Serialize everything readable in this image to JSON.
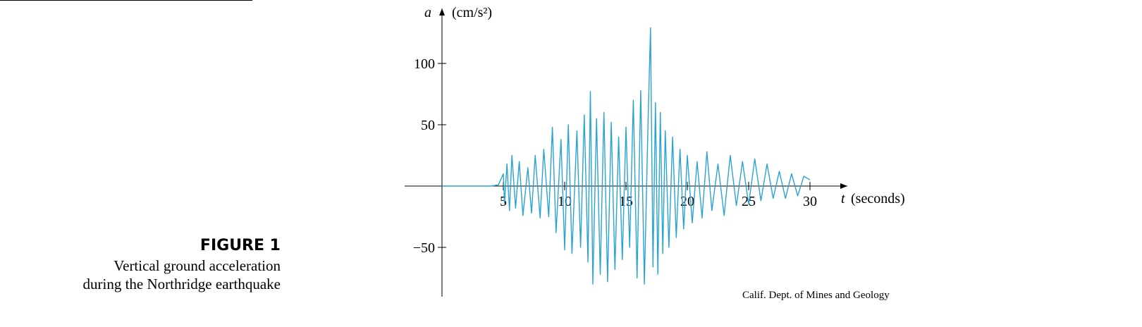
{
  "figure": {
    "label": "FIGURE 1",
    "caption_line1": "Vertical ground acceleration",
    "caption_line2": "during the Northridge earthquake"
  },
  "chart_data": {
    "type": "line",
    "title": "",
    "ylabel_var": "a",
    "ylabel_unit": "(cm/s²)",
    "xlabel_var": "t",
    "xlabel_unit": "(seconds)",
    "xlim": [
      0,
      30
    ],
    "ylim": [
      -88,
      133
    ],
    "x_ticks": [
      5,
      10,
      15,
      20,
      25,
      30
    ],
    "y_ticks": [
      100,
      50,
      -50
    ],
    "y_tick_labels": [
      "100",
      "50",
      "−50"
    ],
    "source": "Calif. Dept. of Mines and Geology",
    "color": "#2aa3d2",
    "series": [
      {
        "x": [
          0,
          1,
          2,
          3,
          4,
          4.6,
          5.0,
          5.1,
          5.3,
          5.5,
          5.7,
          6.0,
          6.3,
          6.6,
          7.0,
          7.3,
          7.6,
          8.0,
          8.3,
          8.7,
          9.0,
          9.3,
          9.7,
          10.0,
          10.3,
          10.6,
          11.0,
          11.3,
          11.6,
          11.9,
          12.1,
          12.3,
          12.6,
          12.9,
          13.2,
          13.5,
          13.8,
          14.1,
          14.4,
          14.7,
          15.0,
          15.3,
          15.6,
          15.9,
          16.2,
          16.5,
          16.8,
          17.0,
          17.2,
          17.4,
          17.6,
          17.8,
          18.0,
          18.2,
          18.5,
          18.8,
          19.1,
          19.4,
          19.7,
          20.0,
          20.4,
          20.8,
          21.2,
          21.6,
          22.0,
          22.5,
          23.0,
          23.5,
          24.0,
          24.5,
          25.0,
          25.5,
          26.0,
          26.5,
          27.0,
          27.5,
          28.0,
          28.5,
          29.0,
          29.5,
          30.0
        ],
        "y": [
          0,
          0,
          0,
          0,
          0,
          1,
          10,
          -14,
          18,
          -20,
          25,
          -18,
          20,
          -24,
          15,
          -22,
          25,
          -26,
          30,
          -25,
          48,
          -38,
          38,
          -52,
          50,
          -55,
          45,
          -50,
          58,
          -62,
          77,
          -80,
          55,
          -72,
          60,
          -78,
          52,
          -68,
          40,
          -60,
          48,
          -50,
          70,
          -75,
          78,
          -80,
          52,
          129,
          -66,
          68,
          -72,
          60,
          -55,
          45,
          -50,
          40,
          -42,
          30,
          -35,
          25,
          -30,
          20,
          -26,
          28,
          -20,
          18,
          -24,
          25,
          -16,
          20,
          -15,
          22,
          -12,
          18,
          -10,
          12,
          -10,
          10,
          -8,
          8,
          5
        ]
      }
    ]
  }
}
